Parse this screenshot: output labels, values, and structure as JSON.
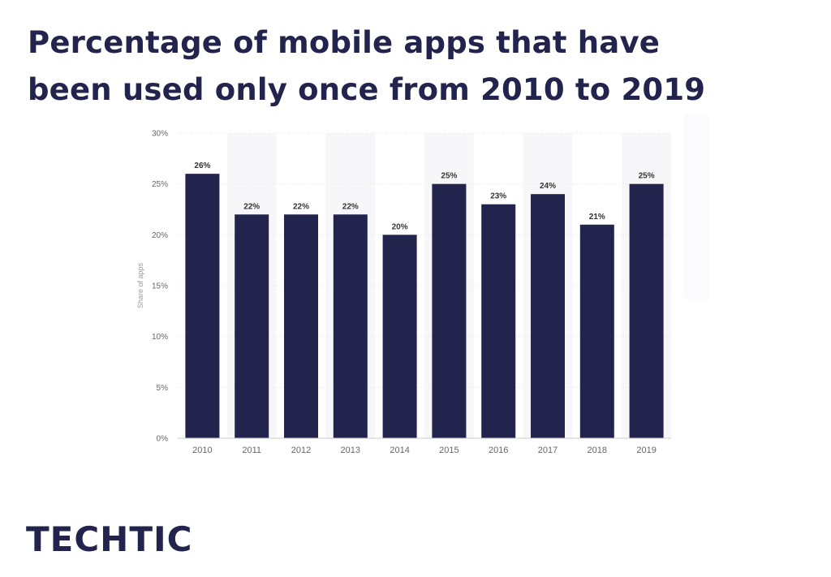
{
  "page": {
    "title_line1": "Percentage of mobile apps that have",
    "title_line2": "been used only once from 2010 to 2019",
    "brand": "TECHTIC"
  },
  "colors": {
    "bar": "#22244d",
    "stripe": "#f7f7f9",
    "grid": "#e6e6e6",
    "title": "#22244d"
  },
  "chart_data": {
    "type": "bar",
    "categories": [
      "2010",
      "2011",
      "2012",
      "2013",
      "2014",
      "2015",
      "2016",
      "2017",
      "2018",
      "2019"
    ],
    "values": [
      26,
      22,
      22,
      22,
      20,
      25,
      23,
      24,
      21,
      25
    ],
    "data_labels": [
      "26%",
      "22%",
      "22%",
      "22%",
      "20%",
      "25%",
      "23%",
      "24%",
      "21%",
      "25%"
    ],
    "ylabel": "Share of apps",
    "xlabel": "",
    "ylim": [
      0,
      30
    ],
    "yticks": [
      0,
      5,
      10,
      15,
      20,
      25,
      30
    ],
    "ytick_labels": [
      "0%",
      "5%",
      "10%",
      "15%",
      "20%",
      "25%",
      "30%"
    ],
    "grid": true
  }
}
